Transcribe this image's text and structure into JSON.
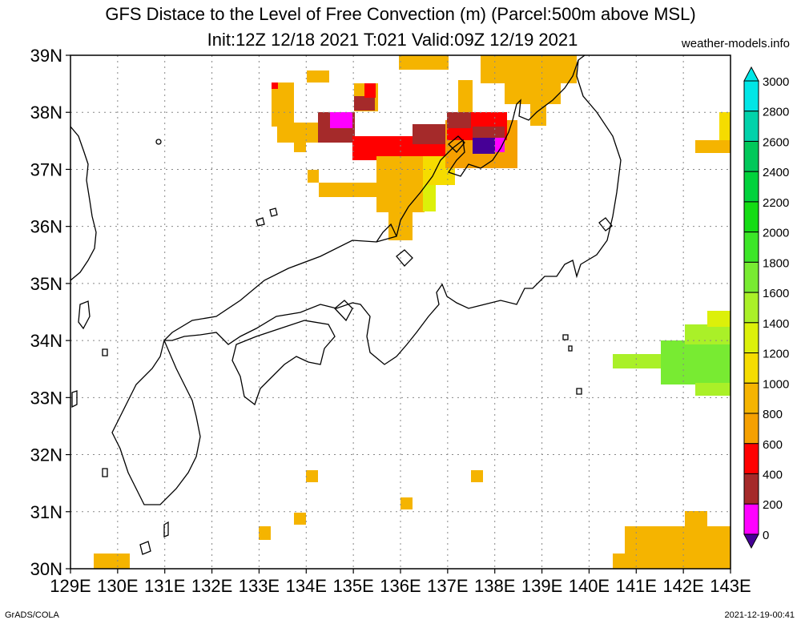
{
  "title": {
    "line1": "GFS Distace to the Level of Free Convection (m) (Parcel:500m above MSL)",
    "line2": "Init:12Z 12/18 2021 T:021 Valid:09Z 12/19 2021"
  },
  "site": "weather-models.info",
  "credit": "GrADS/COLA",
  "timestamp": "2021-12-19-00:41",
  "axes": {
    "lon_labels": [
      "129E",
      "130E",
      "131E",
      "132E",
      "133E",
      "134E",
      "135E",
      "136E",
      "137E",
      "138E",
      "139E",
      "140E",
      "141E",
      "142E",
      "143E"
    ],
    "lat_labels": [
      "30N",
      "31N",
      "32N",
      "33N",
      "34N",
      "35N",
      "36N",
      "37N",
      "38N",
      "39N"
    ]
  },
  "colorbar": {
    "labels": [
      "3000",
      "2800",
      "2600",
      "2400",
      "2200",
      "2000",
      "1800",
      "1600",
      "1400",
      "1200",
      "1000",
      "800",
      "600",
      "400",
      "200",
      "0"
    ],
    "colors": [
      "#00e6e6",
      "#00d2aa",
      "#00c85a",
      "#00d23c",
      "#14dc14",
      "#3ce628",
      "#78eb32",
      "#aaf028",
      "#dcf00a",
      "#f5dc00",
      "#f5b400",
      "#f5a000",
      "#ff0000",
      "#a52a2a",
      "#ff00ff",
      "#460096"
    ]
  }
}
